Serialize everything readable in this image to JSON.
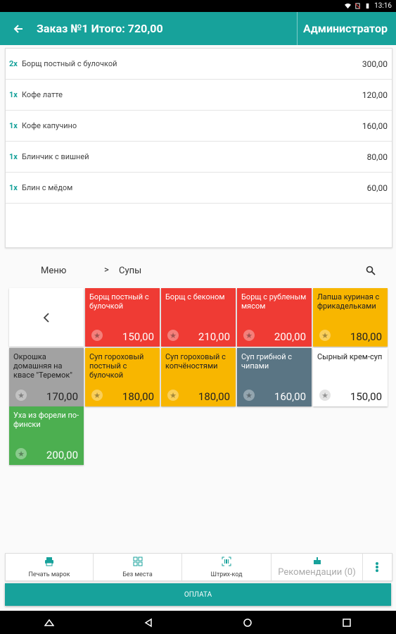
{
  "status": {
    "time": "13:16"
  },
  "header": {
    "title": "Заказ №1 Итого: 720,00",
    "admin_label": "Администратор"
  },
  "order_items": [
    {
      "qty": "2x",
      "name": "Борщ постный с булочкой",
      "price": "300,00"
    },
    {
      "qty": "1x",
      "name": "Кофе латте",
      "price": "120,00"
    },
    {
      "qty": "1x",
      "name": "Кофе капучино",
      "price": "160,00"
    },
    {
      "qty": "1x",
      "name": "Блинчик с вишней",
      "price": "80,00"
    },
    {
      "qty": "1x",
      "name": "Блин с мёдом",
      "price": "60,00"
    }
  ],
  "breadcrumb": {
    "menu": "Меню",
    "separator": ">",
    "current": "Супы"
  },
  "tiles": [
    {
      "name": "Борщ постный с булочкой",
      "price": "150,00",
      "color": "#ef3b34"
    },
    {
      "name": "Борщ с беконом",
      "price": "210,00",
      "color": "#ef3b34"
    },
    {
      "name": "Борщ с рубленым мясом",
      "price": "200,00",
      "color": "#ef3b34"
    },
    {
      "name": "Лапша куриная с фрикадельками",
      "price": "180,00",
      "color": "#f8b600"
    },
    {
      "name": "Окрошка домашняя на квасе \"Теремок\"",
      "price": "170,00",
      "color": "#a2a2a2"
    },
    {
      "name": "Суп гороховый постный с булочкой",
      "price": "180,00",
      "color": "#f8b600"
    },
    {
      "name": "Суп гороховый с копчёностями",
      "price": "180,00",
      "color": "#f8b600"
    },
    {
      "name": "Суп грибной с чипами",
      "price": "160,00",
      "color": "#5a7584"
    },
    {
      "name": "Сырный крем-суп",
      "price": "150,00",
      "color": "#ffffff"
    },
    {
      "name": "Уха из форели по-фински",
      "price": "200,00",
      "color": "#4caf50"
    }
  ],
  "bottom_actions": {
    "print": "Печать марок",
    "no_place": "Без места",
    "barcode": "Штрих-код",
    "recommendations": "Рекомендации (0)"
  },
  "pay_label": "ОПЛАТА",
  "accent_color": "#17a29b"
}
